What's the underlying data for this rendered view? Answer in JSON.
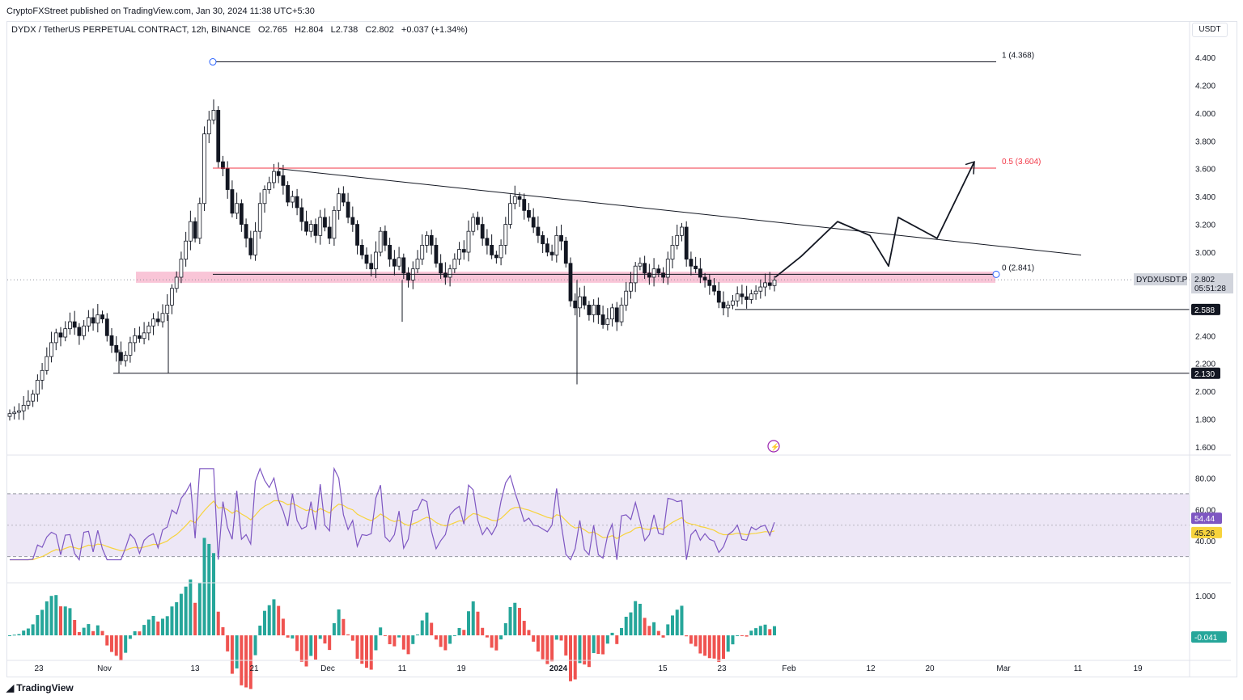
{
  "publisher": "CryptoFXStreet published on TradingView.com, Jan 30, 2024 11:38 UTC+5:30",
  "header": {
    "symbol": "DYDX / TetherUS PERPETUAL CONTRACT, 12h, BINANCE",
    "open": "O2.765",
    "high": "H2.804",
    "low": "L2.738",
    "close": "C2.802",
    "change": "+0.037 (+1.34%)",
    "currency": "USDT"
  },
  "brand": "TradingView",
  "colors": {
    "up": "#26a69a",
    "down": "#ef5350",
    "rsi": "#7e57c2",
    "rsi_ma": "#f7d33c",
    "fib_mid": "#f23645",
    "support_zone": "#f8bbd0",
    "rsi_band": "#ede7f6"
  },
  "chart_data": [
    {
      "type": "candlestick",
      "symbol": "DYDXUSDT.P",
      "timeframe": "12h",
      "ylim": [
        1.55,
        4.55
      ],
      "y_ticks": [
        "4.400",
        "4.200",
        "4.000",
        "3.800",
        "3.600",
        "3.400",
        "3.200",
        "3.000",
        "2.800",
        "2.600",
        "2.400",
        "2.200",
        "2.000",
        "1.800",
        "1.600"
      ],
      "x_ticks": [
        "23",
        "Nov",
        "13",
        "21",
        "Dec",
        "11",
        "19",
        "2024",
        "15",
        "23",
        "Feb",
        "12",
        "20",
        "Mar",
        "11",
        "19"
      ],
      "fib_levels": [
        {
          "label": "1 (4.368)",
          "value": 4.368
        },
        {
          "label": "0.5 (3.604)",
          "value": 3.604
        },
        {
          "label": "0 (2.841)",
          "value": 2.841
        }
      ],
      "price_labels": [
        {
          "label": "2.588",
          "value": 2.588
        },
        {
          "label": "2.130",
          "value": 2.13
        }
      ],
      "last_price": {
        "symbol": "DYDXUSDT.P",
        "price": "2.802",
        "countdown": "05:51:28",
        "value": 2.802
      },
      "support_zone": [
        2.78,
        2.86
      ],
      "trendline": {
        "from": [
          "Nov 24",
          3.6
        ],
        "to": [
          "Feb 28",
          2.98
        ]
      },
      "projection": [
        "2.82",
        "2.97",
        "3.22",
        "3.12",
        "2.90",
        "3.25",
        "3.10",
        "3.65"
      ],
      "series": [
        {
          "name": "DYDXUSDT.P",
          "type": "ohlc",
          "close": [
            1.84,
            1.85,
            1.86,
            1.9,
            1.93,
            1.98,
            2.08,
            2.15,
            2.25,
            2.35,
            2.42,
            2.39,
            2.45,
            2.5,
            2.46,
            2.4,
            2.47,
            2.53,
            2.49,
            2.55,
            2.52,
            2.4,
            2.33,
            2.28,
            2.22,
            2.26,
            2.35,
            2.4,
            2.38,
            2.42,
            2.47,
            2.52,
            2.5,
            2.56,
            2.62,
            2.74,
            2.82,
            2.95,
            3.08,
            3.22,
            3.1,
            3.35,
            3.85,
            3.95,
            4.02,
            3.65,
            3.6,
            3.45,
            3.28,
            3.35,
            3.2,
            3.1,
            2.98,
            3.15,
            3.35,
            3.45,
            3.5,
            3.58,
            3.55,
            3.48,
            3.36,
            3.4,
            3.32,
            3.22,
            3.15,
            3.2,
            3.12,
            3.25,
            3.18,
            3.1,
            3.3,
            3.42,
            3.36,
            3.25,
            3.2,
            3.05,
            2.98,
            2.92,
            2.88,
            3.0,
            3.15,
            3.05,
            2.95,
            2.9,
            2.96,
            2.85,
            2.8,
            2.88,
            2.95,
            3.05,
            3.12,
            3.05,
            2.92,
            2.85,
            2.82,
            2.88,
            2.95,
            3.02,
            3.0,
            3.15,
            3.25,
            3.2,
            3.1,
            3.05,
            2.98,
            2.96,
            3.05,
            3.2,
            3.35,
            3.4,
            3.38,
            3.3,
            3.25,
            3.18,
            3.12,
            3.06,
            3.0,
            2.98,
            3.12,
            3.08,
            2.92,
            2.65,
            2.6,
            2.68,
            2.62,
            2.55,
            2.62,
            2.55,
            2.48,
            2.52,
            2.6,
            2.5,
            2.62,
            2.72,
            2.78,
            2.9,
            2.92,
            2.85,
            2.82,
            2.88,
            2.85,
            2.82,
            2.95,
            3.05,
            3.12,
            3.18,
            2.95,
            2.9,
            2.88,
            2.82,
            2.8,
            2.76,
            2.72,
            2.64,
            2.6,
            2.62,
            2.65,
            2.7,
            2.68,
            2.66,
            2.7,
            2.72,
            2.75,
            2.78,
            2.76,
            2.8
          ]
        },
        {
          "name": "RSI 14",
          "type": "line",
          "ylim": [
            20,
            90
          ],
          "ticks": [
            "80.00",
            "60.00",
            "40.00"
          ],
          "band": [
            70,
            30
          ],
          "mid": 50,
          "last": "54.44"
        },
        {
          "name": "RSI-based MA",
          "type": "line",
          "last": "45.26"
        },
        {
          "name": "Histogram",
          "type": "histogram",
          "ticks": [
            "1.000"
          ],
          "last": "-0.041"
        }
      ]
    }
  ]
}
